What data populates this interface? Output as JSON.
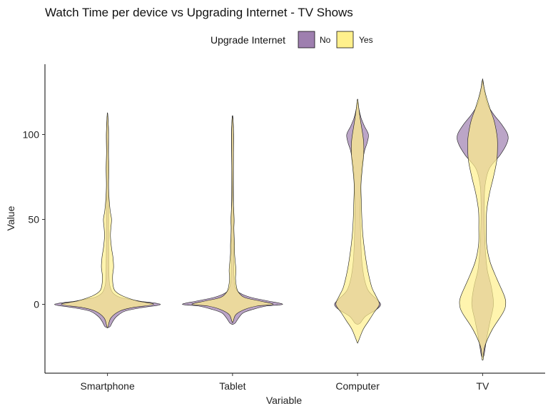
{
  "chart_data": {
    "type": "violin",
    "title": "Watch Time per device vs Upgrading Internet - TV Shows",
    "xlabel": "Variable",
    "ylabel": "Value",
    "ylim": [
      -40,
      137
    ],
    "y_ticks": [
      0,
      50,
      100
    ],
    "categories": [
      "Smartphone",
      "Tablet",
      "Computer",
      "TV"
    ],
    "legend": {
      "title": "Upgrade Internet",
      "position": "top",
      "entries": [
        {
          "label": "No",
          "color": "#9E7FAF"
        },
        {
          "label": "Yes",
          "color": "#FFF08C"
        }
      ]
    },
    "grid": false,
    "series": [
      {
        "name": "No",
        "color": "#9E7FAF",
        "violins": [
          {
            "category": "Smartphone",
            "profile": [
              [
                -13,
                0.2
              ],
              [
                -10,
                0.4
              ],
              [
                -7,
                0.7
              ],
              [
                -4,
                1.3
              ],
              [
                -2,
                2.5
              ],
              [
                0,
                3.9
              ],
              [
                2,
                2.3
              ],
              [
                4,
                1.0
              ],
              [
                6,
                0.5
              ],
              [
                8,
                0.3
              ],
              [
                12,
                0.15
              ],
              [
                20,
                0.1
              ],
              [
                40,
                0.08
              ],
              [
                60,
                0.08
              ],
              [
                80,
                0.06
              ],
              [
                100,
                0.08
              ],
              [
                110,
                0.03
              ]
            ]
          },
          {
            "category": "Tablet",
            "profile": [
              [
                -11,
                0.2
              ],
              [
                -8,
                0.45
              ],
              [
                -5,
                0.8
              ],
              [
                -3,
                1.5
              ],
              [
                -1,
                2.5
              ],
              [
                0,
                3.7
              ],
              [
                2,
                2.6
              ],
              [
                4,
                1.4
              ],
              [
                6,
                0.7
              ],
              [
                8,
                0.35
              ],
              [
                12,
                0.15
              ],
              [
                20,
                0.1
              ],
              [
                40,
                0.1
              ],
              [
                60,
                0.07
              ],
              [
                80,
                0.06
              ],
              [
                100,
                0.08
              ],
              [
                110,
                0.03
              ]
            ]
          },
          {
            "category": "Computer",
            "profile": [
              [
                -11,
                0.2
              ],
              [
                -7,
                0.6
              ],
              [
                -3,
                1.4
              ],
              [
                0,
                1.7
              ],
              [
                3,
                1.4
              ],
              [
                8,
                0.8
              ],
              [
                15,
                0.5
              ],
              [
                25,
                0.32
              ],
              [
                35,
                0.25
              ],
              [
                50,
                0.2
              ],
              [
                65,
                0.22
              ],
              [
                80,
                0.3
              ],
              [
                90,
                0.5
              ],
              [
                95,
                0.7
              ],
              [
                100,
                0.8
              ],
              [
                105,
                0.5
              ],
              [
                110,
                0.25
              ],
              [
                115,
                0.1
              ],
              [
                118,
                0.03
              ]
            ]
          },
          {
            "category": "TV",
            "profile": [
              [
                -30,
                0.1
              ],
              [
                -20,
                0.3
              ],
              [
                -10,
                0.55
              ],
              [
                0,
                0.8
              ],
              [
                10,
                0.65
              ],
              [
                20,
                0.35
              ],
              [
                30,
                0.22
              ],
              [
                40,
                0.15
              ],
              [
                50,
                0.12
              ],
              [
                60,
                0.12
              ],
              [
                70,
                0.18
              ],
              [
                80,
                0.5
              ],
              [
                88,
                1.3
              ],
              [
                95,
                1.8
              ],
              [
                100,
                1.85
              ],
              [
                106,
                1.4
              ],
              [
                112,
                0.8
              ],
              [
                118,
                0.35
              ],
              [
                125,
                0.15
              ],
              [
                131,
                0.05
              ]
            ]
          }
        ]
      },
      {
        "name": "Yes",
        "color": "#FFF08C",
        "violins": [
          {
            "category": "Smartphone",
            "profile": [
              [
                -13,
                0.05
              ],
              [
                -8,
                0.25
              ],
              [
                -4,
                0.9
              ],
              [
                -2,
                1.8
              ],
              [
                0,
                3.4
              ],
              [
                2,
                2.2
              ],
              [
                5,
                1.1
              ],
              [
                8,
                0.55
              ],
              [
                12,
                0.4
              ],
              [
                17,
                0.38
              ],
              [
                22,
                0.45
              ],
              [
                28,
                0.4
              ],
              [
                33,
                0.3
              ],
              [
                40,
                0.22
              ],
              [
                45,
                0.25
              ],
              [
                50,
                0.3
              ],
              [
                55,
                0.2
              ],
              [
                62,
                0.12
              ],
              [
                70,
                0.08
              ],
              [
                80,
                0.1
              ],
              [
                90,
                0.07
              ],
              [
                100,
                0.08
              ],
              [
                108,
                0.05
              ],
              [
                112,
                0.02
              ]
            ]
          },
          {
            "category": "Tablet",
            "profile": [
              [
                -10,
                0.05
              ],
              [
                -6,
                0.25
              ],
              [
                -3,
                0.9
              ],
              [
                -1,
                1.8
              ],
              [
                0,
                3.0
              ],
              [
                2,
                2.0
              ],
              [
                4,
                0.9
              ],
              [
                7,
                0.45
              ],
              [
                10,
                0.3
              ],
              [
                15,
                0.22
              ],
              [
                20,
                0.25
              ],
              [
                25,
                0.2
              ],
              [
                30,
                0.15
              ],
              [
                35,
                0.15
              ],
              [
                40,
                0.12
              ],
              [
                45,
                0.1
              ],
              [
                50,
                0.12
              ],
              [
                60,
                0.06
              ],
              [
                70,
                0.05
              ],
              [
                85,
                0.06
              ],
              [
                100,
                0.07
              ],
              [
                108,
                0.04
              ],
              [
                110,
                0.02
              ]
            ]
          },
          {
            "category": "Computer",
            "profile": [
              [
                -22,
                0.05
              ],
              [
                -15,
                0.4
              ],
              [
                -10,
                0.8
              ],
              [
                -5,
                1.2
              ],
              [
                0,
                1.6
              ],
              [
                5,
                1.35
              ],
              [
                10,
                1.05
              ],
              [
                20,
                0.75
              ],
              [
                30,
                0.55
              ],
              [
                40,
                0.4
              ],
              [
                50,
                0.32
              ],
              [
                60,
                0.28
              ],
              [
                70,
                0.25
              ],
              [
                80,
                0.35
              ],
              [
                88,
                0.45
              ],
              [
                95,
                0.45
              ],
              [
                100,
                0.38
              ],
              [
                108,
                0.22
              ],
              [
                115,
                0.1
              ],
              [
                120,
                0.03
              ]
            ]
          },
          {
            "category": "TV",
            "profile": [
              [
                -32,
                0.05
              ],
              [
                -25,
                0.15
              ],
              [
                -15,
                0.7
              ],
              [
                -5,
                1.5
              ],
              [
                0,
                1.7
              ],
              [
                5,
                1.6
              ],
              [
                15,
                1.05
              ],
              [
                25,
                0.55
              ],
              [
                35,
                0.3
              ],
              [
                45,
                0.28
              ],
              [
                55,
                0.3
              ],
              [
                65,
                0.5
              ],
              [
                75,
                0.8
              ],
              [
                85,
                1.05
              ],
              [
                95,
                1.1
              ],
              [
                100,
                1.05
              ],
              [
                108,
                0.85
              ],
              [
                115,
                0.55
              ],
              [
                122,
                0.28
              ],
              [
                128,
                0.1
              ],
              [
                132,
                0.02
              ]
            ]
          }
        ]
      }
    ]
  }
}
